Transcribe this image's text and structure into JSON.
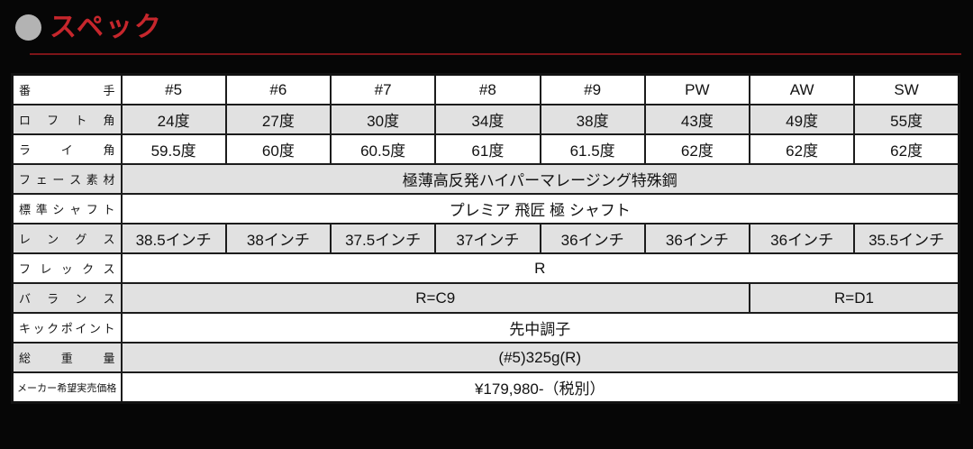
{
  "header": {
    "title": "スペック",
    "accent_color": "#c6262c",
    "underline_color": "#7d1418",
    "bullet_color": "#b3b3b3"
  },
  "table": {
    "stripe_color": "#e1e1e1",
    "rows": {
      "bante": {
        "label": "番手",
        "values": [
          "#5",
          "#6",
          "#7",
          "#8",
          "#9",
          "PW",
          "AW",
          "SW"
        ]
      },
      "loft": {
        "label": "ロフト角",
        "values": [
          "24度",
          "27度",
          "30度",
          "34度",
          "38度",
          "43度",
          "49度",
          "55度"
        ]
      },
      "lie": {
        "label": "ライ角",
        "values": [
          "59.5度",
          "60度",
          "60.5度",
          "61度",
          "61.5度",
          "62度",
          "62度",
          "62度"
        ]
      },
      "face": {
        "label": "フェース素材",
        "value": "極薄高反発ハイパーマレージング特殊鋼"
      },
      "shaft": {
        "label": "標準シャフト",
        "value": "プレミア 飛匠 極 シャフト"
      },
      "length": {
        "label": "レングス",
        "values": [
          "38.5インチ",
          "38インチ",
          "37.5インチ",
          "37インチ",
          "36インチ",
          "36インチ",
          "36インチ",
          "35.5インチ"
        ]
      },
      "flex": {
        "label": "フレックス",
        "value": "R"
      },
      "balance": {
        "label": "バランス",
        "value_main": "R=C9",
        "value_aw_sw": "R=D1"
      },
      "kick": {
        "label": "キックポイント",
        "value": "先中調子"
      },
      "weight": {
        "label": "総重量",
        "value": "(#5)325g(R)"
      },
      "price": {
        "label": "メーカー希望実売価格",
        "value": "¥179,980-（税別）"
      }
    }
  }
}
